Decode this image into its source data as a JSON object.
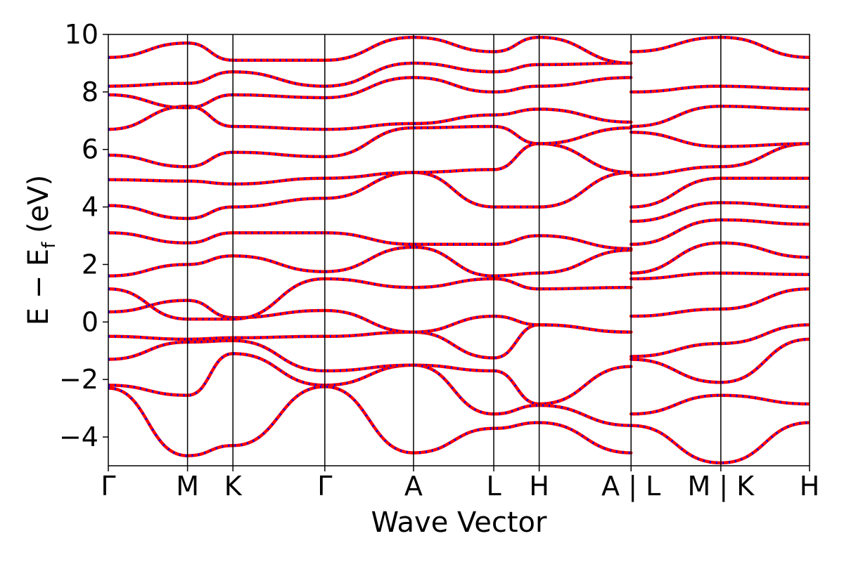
{
  "chart_data": {
    "type": "line",
    "xlabel": "Wave Vector",
    "ylabel_parts": {
      "main": "E − E",
      "sub": "f",
      "unit": " (eV)"
    },
    "ylim": [
      -5,
      10
    ],
    "y_ticks": [
      -4,
      -2,
      0,
      2,
      4,
      6,
      8,
      10
    ],
    "y_tick_labels": [
      "−4",
      "−2",
      "0",
      "2",
      "4",
      "6",
      "8",
      "10"
    ],
    "x_tick_labels": [
      "Γ",
      "M",
      "K",
      "Γ",
      "A",
      "L",
      "H",
      "A | L",
      "M | K",
      "H"
    ],
    "x_tick_positions": [
      0,
      0.75,
      1.18,
      2.05,
      2.89,
      3.65,
      4.08,
      4.95,
      5.8,
      6.64
    ],
    "segment_boundaries": [
      0.75,
      1.18,
      2.05,
      2.89,
      3.65,
      4.08,
      4.95,
      5.8
    ],
    "grid": false,
    "series_colors": {
      "bands_a": "#ff0000",
      "bands_b": "#0000ff"
    },
    "bands": [
      {
        "x": [
          0,
          0.75,
          1.18,
          2.05,
          2.89,
          3.65,
          4.08,
          4.95
        ],
        "y": [
          -2.2,
          -2.55,
          -1.1,
          -2.2,
          -1.5,
          -1.7,
          -2.85,
          -1.55
        ]
      },
      {
        "x": [
          0,
          0.75,
          1.18,
          2.05,
          2.89,
          3.65,
          4.08,
          4.95
        ],
        "y": [
          -2.3,
          -4.65,
          -4.3,
          -2.25,
          -4.55,
          -3.7,
          -3.5,
          -4.55
        ]
      },
      {
        "x": [
          0,
          0.75,
          1.18,
          2.05,
          2.89,
          3.65,
          4.08,
          4.95
        ],
        "y": [
          -1.3,
          -0.7,
          -0.65,
          -1.7,
          -1.5,
          -3.2,
          -2.9,
          -3.6
        ]
      },
      {
        "x": [
          0,
          0.75,
          1.18,
          2.05,
          2.89,
          3.65,
          4.08,
          4.95
        ],
        "y": [
          -0.5,
          -0.6,
          -0.55,
          -0.5,
          -0.35,
          -1.25,
          -0.1,
          -0.35
        ]
      },
      {
        "x": [
          0,
          0.75,
          1.18,
          2.05,
          2.89,
          3.65,
          4.08,
          4.95
        ],
        "y": [
          0.35,
          0.75,
          0.15,
          0.4,
          -0.35,
          0.2,
          -0.1,
          -0.35
        ]
      },
      {
        "x": [
          0,
          0.75,
          1.18,
          2.05,
          2.89,
          3.65,
          4.08,
          4.95
        ],
        "y": [
          1.15,
          0.1,
          0.1,
          1.5,
          1.2,
          1.5,
          1.15,
          1.2
        ]
      },
      {
        "x": [
          0,
          0.75,
          1.18,
          2.05,
          2.89,
          3.65,
          4.08,
          4.95
        ],
        "y": [
          1.6,
          2.0,
          2.3,
          1.75,
          2.6,
          1.6,
          1.7,
          2.5
        ]
      },
      {
        "x": [
          0,
          0.75,
          1.18,
          2.05,
          2.89,
          3.65,
          4.08,
          4.95
        ],
        "y": [
          3.1,
          2.75,
          3.1,
          3.1,
          2.7,
          2.7,
          3.0,
          2.55
        ]
      },
      {
        "x": [
          0,
          0.75,
          1.18,
          2.05,
          2.89,
          3.65,
          4.08,
          4.95
        ],
        "y": [
          4.05,
          3.6,
          4.0,
          4.3,
          5.2,
          4.0,
          4.0,
          5.2
        ]
      },
      {
        "x": [
          0,
          0.75,
          1.18,
          2.05,
          2.89,
          3.65,
          4.08,
          4.95
        ],
        "y": [
          4.95,
          4.9,
          4.8,
          5.0,
          5.2,
          5.3,
          6.2,
          5.2
        ]
      },
      {
        "x": [
          0,
          0.75,
          1.18,
          2.05,
          2.89,
          3.65,
          4.08,
          4.95
        ],
        "y": [
          5.8,
          5.4,
          5.9,
          5.75,
          6.75,
          6.8,
          6.2,
          6.75
        ]
      },
      {
        "x": [
          0,
          0.75,
          1.18,
          2.05,
          2.89,
          3.65,
          4.08,
          4.95
        ],
        "y": [
          6.7,
          7.5,
          6.8,
          6.7,
          6.9,
          7.2,
          7.4,
          6.95
        ]
      },
      {
        "x": [
          0,
          0.75,
          1.18,
          2.05,
          2.89,
          3.65,
          4.08,
          4.95
        ],
        "y": [
          7.9,
          7.45,
          7.9,
          7.8,
          8.5,
          8.0,
          8.2,
          8.5
        ]
      },
      {
        "x": [
          0,
          0.75,
          1.18,
          2.05,
          2.89,
          3.65,
          4.08,
          4.95
        ],
        "y": [
          8.2,
          8.3,
          8.7,
          8.2,
          9.0,
          8.7,
          8.95,
          9.0
        ]
      },
      {
        "x": [
          0,
          0.75,
          1.18,
          2.05,
          2.89,
          3.65,
          4.08,
          4.95
        ],
        "y": [
          9.2,
          9.7,
          9.1,
          9.1,
          9.9,
          9.4,
          9.9,
          9.0
        ]
      },
      {
        "x": [
          4.95,
          5.8,
          6.64
        ],
        "y": [
          -3.2,
          -2.55,
          -2.85
        ]
      },
      {
        "x": [
          4.95,
          5.8,
          6.64
        ],
        "y": [
          -3.6,
          -4.9,
          -3.5
        ]
      },
      {
        "x": [
          4.95,
          5.8,
          6.64
        ],
        "y": [
          -1.3,
          -2.1,
          -0.6
        ]
      },
      {
        "x": [
          4.95,
          5.8,
          6.64
        ],
        "y": [
          -1.2,
          -0.75,
          -0.1
        ]
      },
      {
        "x": [
          4.95,
          5.8,
          6.64
        ],
        "y": [
          0.2,
          0.45,
          1.15
        ]
      },
      {
        "x": [
          4.95,
          5.8,
          6.64
        ],
        "y": [
          1.5,
          1.7,
          1.65
        ]
      },
      {
        "x": [
          4.95,
          5.8,
          6.64
        ],
        "y": [
          1.7,
          2.75,
          2.25
        ]
      },
      {
        "x": [
          4.95,
          5.8,
          6.64
        ],
        "y": [
          2.7,
          3.55,
          3.4
        ]
      },
      {
        "x": [
          4.95,
          5.8,
          6.64
        ],
        "y": [
          3.5,
          4.15,
          4.0
        ]
      },
      {
        "x": [
          4.95,
          5.8,
          6.64
        ],
        "y": [
          4.0,
          5.0,
          5.0
        ]
      },
      {
        "x": [
          4.95,
          5.8,
          6.64
        ],
        "y": [
          5.1,
          5.4,
          6.2
        ]
      },
      {
        "x": [
          4.95,
          5.8,
          6.64
        ],
        "y": [
          6.6,
          6.1,
          6.2
        ]
      },
      {
        "x": [
          4.95,
          5.8,
          6.64
        ],
        "y": [
          6.8,
          7.5,
          7.4
        ]
      },
      {
        "x": [
          4.95,
          5.8,
          6.64
        ],
        "y": [
          8.0,
          8.2,
          8.1
        ]
      },
      {
        "x": [
          4.95,
          5.8,
          6.64
        ],
        "y": [
          9.4,
          9.9,
          9.2
        ]
      }
    ]
  }
}
